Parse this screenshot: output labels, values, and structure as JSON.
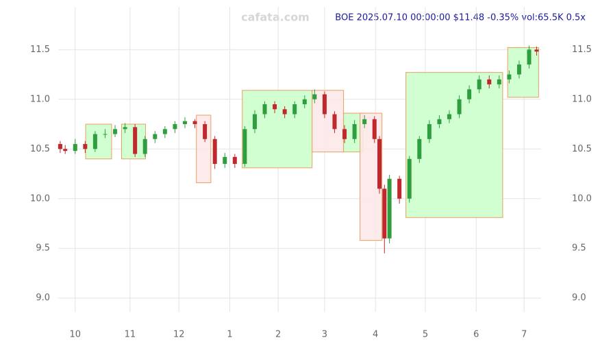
{
  "chart_data": {
    "type": "candlestick",
    "title": "BOE 2025.07.10 00:00:00 $11.48 -0.35% vol:65.5K 0.5x",
    "watermark": "cafata.com",
    "xlim": [
      -0.34,
      9.34
    ],
    "ylim": [
      8.86,
      11.93
    ],
    "xticks": [
      {
        "value": 0,
        "label": "10"
      },
      {
        "value": 1.1,
        "label": "11"
      },
      {
        "value": 2.08,
        "label": "12"
      },
      {
        "value": 3.1,
        "label": "1"
      },
      {
        "value": 4.07,
        "label": "2"
      },
      {
        "value": 5.0,
        "label": "3"
      },
      {
        "value": 6.02,
        "label": "4"
      },
      {
        "value": 7.02,
        "label": "5"
      },
      {
        "value": 8.04,
        "label": "6"
      },
      {
        "value": 9.0,
        "label": "7"
      }
    ],
    "yticks": [
      {
        "value": 9.0,
        "label": "9.0"
      },
      {
        "value": 9.5,
        "label": "9.5"
      },
      {
        "value": 10.0,
        "label": "10.0"
      },
      {
        "value": 10.5,
        "label": "10.5"
      },
      {
        "value": 11.0,
        "label": "11.0"
      },
      {
        "value": 11.5,
        "label": "11.5"
      }
    ],
    "grid": true,
    "up_color": "#2e9e3e",
    "down_color": "#c0282d",
    "x": [
      -0.3,
      -0.2,
      0,
      0.2,
      0.4,
      0.6,
      0.8,
      1.0,
      1.2,
      1.4,
      1.6,
      1.8,
      2.0,
      2.2,
      2.4,
      2.6,
      2.8,
      3.0,
      3.2,
      3.4,
      3.6,
      3.8,
      4.0,
      4.2,
      4.4,
      4.6,
      4.8,
      5.0,
      5.2,
      5.4,
      5.6,
      5.8,
      6.0,
      6.1,
      6.2,
      6.3,
      6.5,
      6.7,
      6.9,
      7.1,
      7.3,
      7.5,
      7.7,
      7.9,
      8.1,
      8.3,
      8.5,
      8.7,
      8.9,
      9.1,
      9.25
    ],
    "close": [
      10.5,
      10.48,
      10.55,
      10.5,
      10.65,
      10.65,
      10.7,
      10.72,
      10.45,
      10.6,
      10.65,
      10.7,
      10.75,
      10.78,
      10.75,
      10.6,
      10.35,
      10.42,
      10.35,
      10.7,
      10.85,
      10.95,
      10.9,
      10.85,
      10.95,
      11.0,
      11.05,
      10.85,
      10.7,
      10.6,
      10.75,
      10.8,
      10.6,
      10.1,
      9.6,
      10.2,
      10.0,
      10.4,
      10.6,
      10.75,
      10.8,
      10.85,
      11.0,
      11.1,
      11.2,
      11.15,
      11.2,
      11.25,
      11.35,
      11.5,
      11.48
    ],
    "open": [
      10.55,
      10.5,
      10.48,
      10.55,
      10.5,
      10.65,
      10.65,
      10.7,
      10.72,
      10.45,
      10.6,
      10.65,
      10.7,
      10.75,
      10.78,
      10.75,
      10.6,
      10.35,
      10.42,
      10.35,
      10.7,
      10.85,
      10.95,
      10.9,
      10.85,
      10.95,
      11.0,
      11.05,
      10.85,
      10.7,
      10.6,
      10.75,
      10.8,
      10.6,
      10.1,
      9.6,
      10.2,
      10.0,
      10.4,
      10.6,
      10.75,
      10.8,
      10.85,
      11.0,
      11.1,
      11.2,
      11.15,
      11.2,
      11.25,
      11.35,
      11.5
    ],
    "high": [
      10.58,
      10.54,
      10.6,
      10.58,
      10.68,
      10.7,
      10.74,
      10.76,
      10.75,
      10.63,
      10.68,
      10.73,
      10.78,
      10.82,
      10.8,
      10.78,
      10.63,
      10.46,
      10.45,
      10.73,
      10.89,
      10.98,
      10.98,
      10.93,
      10.98,
      11.04,
      11.1,
      11.08,
      10.88,
      10.74,
      10.79,
      10.84,
      10.83,
      10.63,
      10.14,
      10.24,
      10.23,
      10.43,
      10.63,
      10.79,
      10.84,
      10.89,
      11.04,
      11.14,
      11.24,
      11.24,
      11.24,
      11.29,
      11.39,
      11.54,
      11.53
    ],
    "low": [
      10.46,
      10.45,
      10.45,
      10.46,
      10.47,
      10.61,
      10.62,
      10.66,
      10.42,
      10.42,
      10.56,
      10.61,
      10.66,
      10.71,
      10.71,
      10.57,
      10.3,
      10.31,
      10.31,
      10.32,
      10.66,
      10.81,
      10.86,
      10.81,
      10.81,
      10.91,
      10.96,
      10.81,
      10.66,
      10.56,
      10.56,
      10.71,
      10.56,
      10.05,
      9.45,
      9.55,
      9.95,
      9.96,
      10.36,
      10.56,
      10.71,
      10.76,
      10.81,
      10.96,
      11.06,
      11.11,
      11.11,
      11.16,
      11.21,
      11.31,
      11.44
    ],
    "zones": [
      {
        "x": [
          0.21,
          0.73
        ],
        "y": [
          10.4,
          10.75
        ],
        "color": "#ccffcc"
      },
      {
        "x": [
          0.93,
          1.41
        ],
        "y": [
          10.4,
          10.75
        ],
        "color": "#ccffcc"
      },
      {
        "x": [
          2.43,
          2.72
        ],
        "y": [
          10.16,
          10.84
        ],
        "color": "#fde8e8"
      },
      {
        "x": [
          3.35,
          4.75
        ],
        "y": [
          10.31,
          11.09
        ],
        "color": "#ccffcc"
      },
      {
        "x": [
          4.75,
          5.38
        ],
        "y": [
          10.47,
          11.09
        ],
        "color": "#fde8e8"
      },
      {
        "x": [
          5.38,
          5.77
        ],
        "y": [
          10.47,
          10.86
        ],
        "color": "#ccffcc"
      },
      {
        "x": [
          5.71,
          6.15
        ],
        "y": [
          9.58,
          10.86
        ],
        "color": "#fde8e8"
      },
      {
        "x": [
          6.63,
          8.57
        ],
        "y": [
          9.81,
          11.27
        ],
        "color": "#ccffcc"
      },
      {
        "x": [
          8.67,
          9.29
        ],
        "y": [
          11.02,
          11.52
        ],
        "color": "#ccffcc"
      }
    ]
  }
}
